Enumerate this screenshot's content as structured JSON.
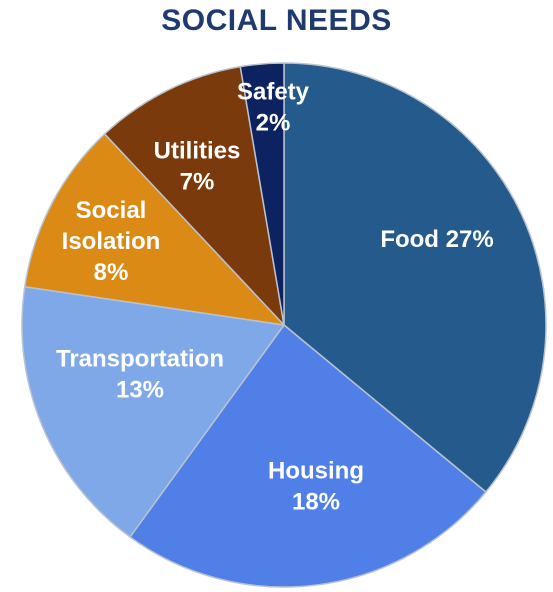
{
  "chart_data": {
    "type": "pie",
    "title": "SOCIAL NEEDS",
    "slices": [
      {
        "label": "Food",
        "value": 27,
        "color": "#255a8c",
        "label_lines": [
          "Food 27%"
        ]
      },
      {
        "label": "Housing",
        "value": 18,
        "color": "#507fe8",
        "label_lines": [
          "Housing",
          "18%"
        ]
      },
      {
        "label": "Transportation",
        "value": 13,
        "color": "#7fa8e8",
        "label_lines": [
          "Transportation",
          "13%"
        ]
      },
      {
        "label": "Social Isolation",
        "value": 8,
        "color": "#db8a16",
        "label_lines": [
          "Social",
          "Isolation",
          "8%"
        ]
      },
      {
        "label": "Utilities",
        "value": 7,
        "color": "#7b3a0c",
        "label_lines": [
          "Utilities",
          "7%"
        ]
      },
      {
        "label": "Safety",
        "value": 2,
        "color": "#0d2260",
        "label_lines": [
          "Safety",
          "2%"
        ]
      }
    ]
  }
}
